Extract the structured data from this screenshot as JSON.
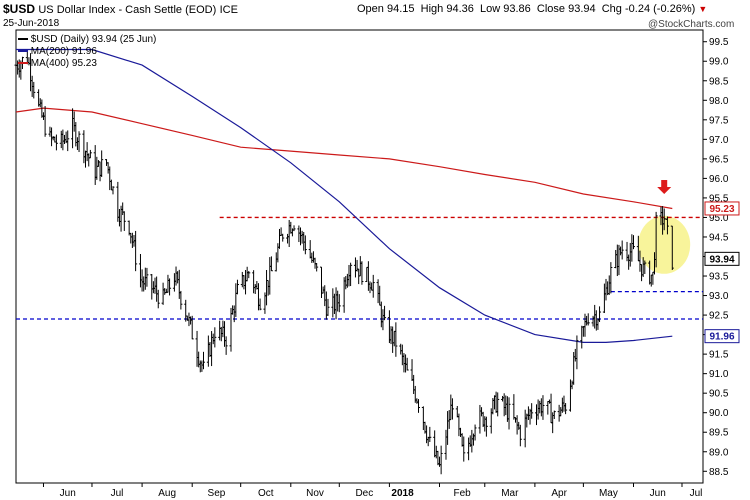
{
  "header": {
    "symbol": "$USD",
    "name": "US Dollar Index - Cash Settle (EOD)",
    "exchange": "ICE",
    "date": "25-Jun-2018",
    "open_label": "Open",
    "open": "94.15",
    "high_label": "High",
    "high": "94.36",
    "low_label": "Low",
    "low": "93.86",
    "close_label": "Close",
    "close": "93.94",
    "chg_label": "Chg",
    "chg": "-0.24 (-0.26%)",
    "chg_arrow": "▼",
    "watermark": "@StockCharts.com"
  },
  "legend": {
    "price": "$USD (Daily) 93.94 (25 Jun)",
    "ma200": "MA(200) 91.96",
    "ma400": "MA(400) 95.23"
  },
  "badges": {
    "ma400": "95.23",
    "close": "93.94",
    "ma200": "91.96"
  },
  "colors": {
    "price": "#000000",
    "ma200": "#1a1a99",
    "ma400": "#cc1a1a",
    "resistance_line": "#cc0000",
    "support_line": "#0000cc",
    "highlight": "#f5f07a",
    "arrow": "#dd1a1a"
  },
  "chart_data": {
    "type": "line",
    "title": "$USD US Dollar Index - Cash Settle (EOD) ICE",
    "ylim": [
      88.2,
      99.8
    ],
    "y_ticks": [
      "99.5",
      "99.0",
      "98.5",
      "98.0",
      "97.5",
      "97.0",
      "96.5",
      "96.0",
      "95.5",
      "95.0",
      "94.5",
      "94.0",
      "93.5",
      "93.0",
      "92.5",
      "92.0",
      "91.5",
      "91.0",
      "90.5",
      "90.0",
      "89.5",
      "89.0",
      "88.5"
    ],
    "x_ticks": [
      "Jun",
      "Jul",
      "Aug",
      "Sep",
      "Oct",
      "Nov",
      "Dec",
      "2018",
      "Feb",
      "Mar",
      "Apr",
      "May",
      "Jun",
      "Jul"
    ],
    "x_range": [
      "2017-05-15",
      "2018-07-14"
    ],
    "series": [
      {
        "name": "$USD (Daily)",
        "style": "ohlc-bars",
        "points": [
          [
            "2017-05-15",
            98.9
          ],
          [
            "2017-05-22",
            99.1
          ],
          [
            "2017-05-29",
            97.8
          ],
          [
            "2017-06-05",
            97.0
          ],
          [
            "2017-06-12",
            96.9
          ],
          [
            "2017-06-19",
            97.3
          ],
          [
            "2017-06-26",
            96.8
          ],
          [
            "2017-07-03",
            96.2
          ],
          [
            "2017-07-10",
            96.4
          ],
          [
            "2017-07-17",
            95.2
          ],
          [
            "2017-07-24",
            94.8
          ],
          [
            "2017-07-31",
            93.4
          ],
          [
            "2017-08-07",
            93.2
          ],
          [
            "2017-08-14",
            92.9
          ],
          [
            "2017-08-21",
            93.5
          ],
          [
            "2017-08-28",
            92.6
          ],
          [
            "2017-09-04",
            91.6
          ],
          [
            "2017-09-08",
            91.1
          ],
          [
            "2017-09-15",
            92.1
          ],
          [
            "2017-09-22",
            91.9
          ],
          [
            "2017-09-29",
            93.1
          ],
          [
            "2017-10-06",
            93.6
          ],
          [
            "2017-10-13",
            92.9
          ],
          [
            "2017-10-20",
            93.6
          ],
          [
            "2017-10-27",
            94.6
          ],
          [
            "2017-11-03",
            94.9
          ],
          [
            "2017-11-10",
            94.3
          ],
          [
            "2017-11-17",
            93.6
          ],
          [
            "2017-11-24",
            92.6
          ],
          [
            "2017-12-01",
            92.9
          ],
          [
            "2017-12-08",
            93.9
          ],
          [
            "2017-12-15",
            93.6
          ],
          [
            "2017-12-22",
            93.3
          ],
          [
            "2017-12-29",
            92.2
          ],
          [
            "2018-01-05",
            91.8
          ],
          [
            "2018-01-12",
            91.0
          ],
          [
            "2018-01-19",
            90.3
          ],
          [
            "2018-01-26",
            89.2
          ],
          [
            "2018-02-01",
            88.6
          ],
          [
            "2018-02-09",
            90.3
          ],
          [
            "2018-02-16",
            88.8
          ],
          [
            "2018-02-23",
            89.8
          ],
          [
            "2018-03-02",
            89.9
          ],
          [
            "2018-03-09",
            90.3
          ],
          [
            "2018-03-16",
            90.0
          ],
          [
            "2018-03-23",
            89.5
          ],
          [
            "2018-03-30",
            90.1
          ],
          [
            "2018-04-06",
            90.2
          ],
          [
            "2018-04-13",
            89.9
          ],
          [
            "2018-04-20",
            90.2
          ],
          [
            "2018-04-27",
            91.6
          ],
          [
            "2018-05-04",
            92.5
          ],
          [
            "2018-05-11",
            92.5
          ],
          [
            "2018-05-18",
            93.6
          ],
          [
            "2018-05-25",
            94.2
          ],
          [
            "2018-06-01",
            94.1
          ],
          [
            "2018-06-08",
            93.6
          ],
          [
            "2018-06-13",
            93.5
          ],
          [
            "2018-06-15",
            94.8
          ],
          [
            "2018-06-20",
            95.0
          ],
          [
            "2018-06-25",
            93.9
          ]
        ]
      },
      {
        "name": "MA(200)",
        "points": [
          [
            "2017-05-15",
            99.3
          ],
          [
            "2017-06-15",
            99.3
          ],
          [
            "2017-07-01",
            99.3
          ],
          [
            "2017-08-01",
            98.9
          ],
          [
            "2017-09-01",
            98.1
          ],
          [
            "2017-10-01",
            97.3
          ],
          [
            "2017-11-01",
            96.4
          ],
          [
            "2017-12-01",
            95.4
          ],
          [
            "2018-01-01",
            94.2
          ],
          [
            "2018-02-01",
            93.2
          ],
          [
            "2018-03-01",
            92.5
          ],
          [
            "2018-04-01",
            92.0
          ],
          [
            "2018-05-01",
            91.8
          ],
          [
            "2018-05-15",
            91.8
          ],
          [
            "2018-06-01",
            91.85
          ],
          [
            "2018-06-25",
            91.96
          ]
        ]
      },
      {
        "name": "MA(400)",
        "points": [
          [
            "2017-05-15",
            97.7
          ],
          [
            "2017-06-01",
            97.8
          ],
          [
            "2017-07-01",
            97.7
          ],
          [
            "2017-08-01",
            97.4
          ],
          [
            "2017-09-01",
            97.1
          ],
          [
            "2017-10-01",
            96.8
          ],
          [
            "2017-11-01",
            96.7
          ],
          [
            "2017-12-01",
            96.6
          ],
          [
            "2018-01-01",
            96.5
          ],
          [
            "2018-02-01",
            96.3
          ],
          [
            "2018-03-01",
            96.1
          ],
          [
            "2018-04-01",
            95.9
          ],
          [
            "2018-05-01",
            95.6
          ],
          [
            "2018-06-01",
            95.4
          ],
          [
            "2018-06-25",
            95.23
          ]
        ]
      }
    ],
    "annotations": {
      "resistance": 95.0,
      "support_upper": 93.1,
      "support_lower": 92.4,
      "highlight_center": [
        "2018-06-20",
        94.3
      ],
      "arrow_at": [
        "2018-06-20",
        95.6
      ]
    },
    "grid": false,
    "legend": "top-left"
  }
}
